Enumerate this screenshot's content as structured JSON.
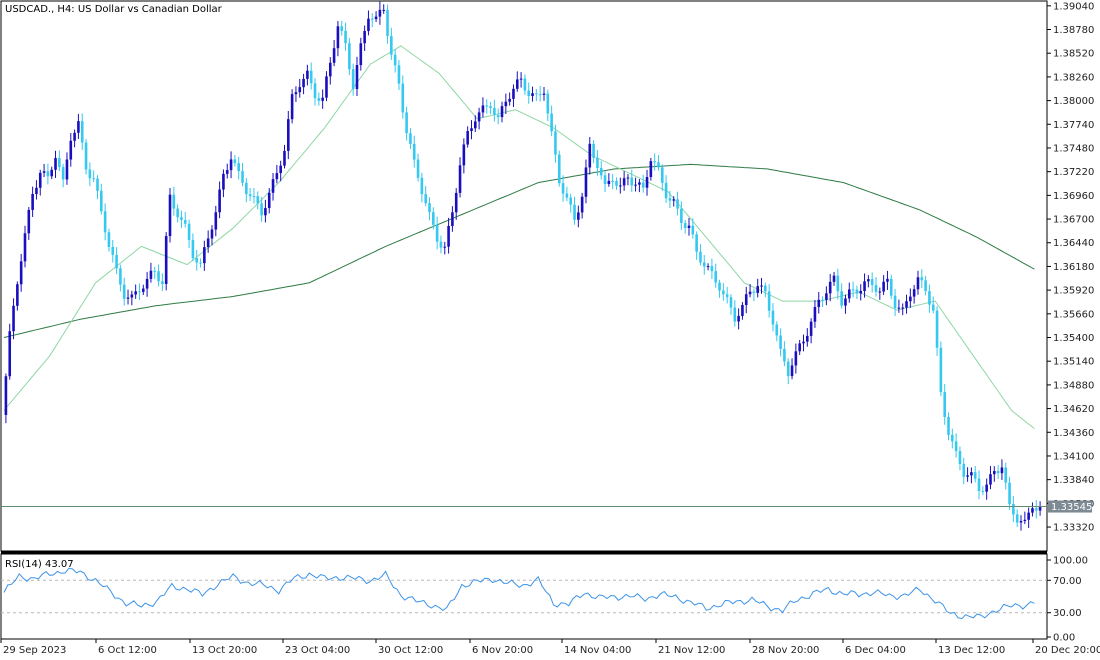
{
  "window": {
    "symbol": "USDCAD.",
    "timeframe": "H4",
    "description": "US Dollar vs Canadian Dollar",
    "title": "USDCAD., H4:  US Dollar vs Canadian Dollar"
  },
  "colors": {
    "bull": "#1a0fbf",
    "bear": "#35c8f0",
    "ma_fast": "#8fd6a4",
    "ma_slow": "#2f7a44",
    "rsi_line": "#3d94e8",
    "price_line": "#5f8f70",
    "price_tag_bg": "#7d8a93",
    "grid_frame": "#000000"
  },
  "chart_data": [
    {
      "type": "candlestick",
      "title": "USDCAD., H4:  US Dollar vs Canadian Dollar",
      "y_ticks": [
        "1.39040",
        "1.38780",
        "1.38520",
        "1.38260",
        "1.38000",
        "1.37740",
        "1.37480",
        "1.37220",
        "1.36960",
        "1.36700",
        "1.36440",
        "1.36180",
        "1.35920",
        "1.35660",
        "1.35400",
        "1.35140",
        "1.34880",
        "1.34620",
        "1.34360",
        "1.34100",
        "1.33840",
        "1.33580",
        "1.33320"
      ],
      "ylim": [
        1.3309,
        1.3906
      ],
      "x_ticks": [
        "29 Sep 2023",
        "6 Oct 12:00",
        "13 Oct 20:00",
        "23 Oct 04:00",
        "30 Oct 12:00",
        "6 Nov 20:00",
        "14 Nov 04:00",
        "21 Nov 12:00",
        "28 Nov 20:00",
        "6 Dec 04:00",
        "13 Dec 12:00",
        "20 Dec 20:00"
      ],
      "current_price": "1.33545",
      "close_path": [
        [
          0,
          1.3455
        ],
        [
          2,
          1.354
        ],
        [
          4,
          1.36
        ],
        [
          6,
          1.365
        ],
        [
          8,
          1.37
        ],
        [
          10,
          1.3725
        ],
        [
          12,
          1.3715
        ],
        [
          14,
          1.374
        ],
        [
          16,
          1.3705
        ],
        [
          18,
          1.376
        ],
        [
          20,
          1.3775
        ],
        [
          22,
          1.373
        ],
        [
          24,
          1.3715
        ],
        [
          26,
          1.3675
        ],
        [
          28,
          1.364
        ],
        [
          30,
          1.361
        ],
        [
          32,
          1.359
        ],
        [
          34,
          1.3585
        ],
        [
          36,
          1.3595
        ],
        [
          38,
          1.36
        ],
        [
          40,
          1.361
        ],
        [
          42,
          1.36
        ],
        [
          44,
          1.3695
        ],
        [
          46,
          1.368
        ],
        [
          48,
          1.366
        ],
        [
          50,
          1.363
        ],
        [
          52,
          1.3615
        ],
        [
          54,
          1.365
        ],
        [
          56,
          1.368
        ],
        [
          58,
          1.372
        ],
        [
          60,
          1.374
        ],
        [
          62,
          1.3715
        ],
        [
          64,
          1.37
        ],
        [
          66,
          1.369
        ],
        [
          68,
          1.368
        ],
        [
          70,
          1.37
        ],
        [
          72,
          1.372
        ],
        [
          74,
          1.3745
        ],
        [
          76,
          1.38
        ],
        [
          78,
          1.382
        ],
        [
          80,
          1.383
        ],
        [
          82,
          1.381
        ],
        [
          84,
          1.38
        ],
        [
          86,
          1.384
        ],
        [
          88,
          1.388
        ],
        [
          90,
          1.386
        ],
        [
          92,
          1.382
        ],
        [
          94,
          1.386
        ],
        [
          96,
          1.3895
        ],
        [
          98,
          1.3885
        ],
        [
          100,
          1.39
        ],
        [
          102,
          1.385
        ],
        [
          104,
          1.382
        ],
        [
          106,
          1.377
        ],
        [
          108,
          1.373
        ],
        [
          110,
          1.37
        ],
        [
          112,
          1.367
        ],
        [
          114,
          1.365
        ],
        [
          116,
          1.364
        ],
        [
          118,
          1.368
        ],
        [
          120,
          1.373
        ],
        [
          122,
          1.376
        ],
        [
          124,
          1.378
        ],
        [
          126,
          1.379
        ],
        [
          128,
          1.38
        ],
        [
          130,
          1.378
        ],
        [
          132,
          1.38
        ],
        [
          134,
          1.381
        ],
        [
          136,
          1.382
        ],
        [
          138,
          1.381
        ],
        [
          140,
          1.3805
        ],
        [
          142,
          1.3815
        ],
        [
          144,
          1.376
        ],
        [
          146,
          1.371
        ],
        [
          148,
          1.369
        ],
        [
          150,
          1.367
        ],
        [
          152,
          1.37
        ],
        [
          154,
          1.375
        ],
        [
          156,
          1.373
        ],
        [
          158,
          1.37
        ],
        [
          160,
          1.3715
        ],
        [
          162,
          1.3705
        ],
        [
          164,
          1.372
        ],
        [
          166,
          1.371
        ],
        [
          168,
          1.37
        ],
        [
          170,
          1.3735
        ],
        [
          172,
          1.372
        ],
        [
          174,
          1.37
        ],
        [
          176,
          1.369
        ],
        [
          178,
          1.367
        ],
        [
          180,
          1.366
        ],
        [
          182,
          1.363
        ],
        [
          184,
          1.362
        ],
        [
          186,
          1.361
        ],
        [
          188,
          1.36
        ],
        [
          190,
          1.358
        ],
        [
          192,
          1.356
        ],
        [
          194,
          1.357
        ],
        [
          196,
          1.359
        ],
        [
          198,
          1.36
        ],
        [
          200,
          1.359
        ],
        [
          202,
          1.356
        ],
        [
          204,
          1.352
        ],
        [
          206,
          1.35
        ],
        [
          208,
          1.352
        ],
        [
          210,
          1.354
        ],
        [
          212,
          1.356
        ],
        [
          214,
          1.358
        ],
        [
          216,
          1.359
        ],
        [
          218,
          1.36
        ],
        [
          220,
          1.358
        ],
        [
          222,
          1.359
        ],
        [
          224,
          1.3595
        ],
        [
          226,
          1.36
        ],
        [
          228,
          1.3595
        ],
        [
          230,
          1.359
        ],
        [
          232,
          1.36
        ],
        [
          234,
          1.358
        ],
        [
          236,
          1.357
        ],
        [
          238,
          1.359
        ],
        [
          240,
          1.36
        ],
        [
          242,
          1.359
        ],
        [
          244,
          1.357
        ],
        [
          246,
          1.348
        ],
        [
          248,
          1.344
        ],
        [
          250,
          1.341
        ],
        [
          252,
          1.339
        ],
        [
          254,
          1.3385
        ],
        [
          256,
          1.3375
        ],
        [
          258,
          1.338
        ],
        [
          260,
          1.3395
        ],
        [
          262,
          1.34
        ],
        [
          264,
          1.335
        ],
        [
          266,
          1.334
        ],
        [
          268,
          1.3335
        ],
        [
          270,
          1.336
        ],
        [
          272,
          1.3354
        ]
      ],
      "ma_fast": [
        [
          0,
          1.346
        ],
        [
          12,
          1.352
        ],
        [
          24,
          1.36
        ],
        [
          36,
          1.364
        ],
        [
          48,
          1.362
        ],
        [
          60,
          1.366
        ],
        [
          72,
          1.371
        ],
        [
          84,
          1.377
        ],
        [
          96,
          1.384
        ],
        [
          104,
          1.386
        ],
        [
          114,
          1.383
        ],
        [
          124,
          1.378
        ],
        [
          134,
          1.379
        ],
        [
          144,
          1.377
        ],
        [
          154,
          1.374
        ],
        [
          164,
          1.372
        ],
        [
          174,
          1.37
        ],
        [
          184,
          1.365
        ],
        [
          194,
          1.36
        ],
        [
          204,
          1.358
        ],
        [
          214,
          1.358
        ],
        [
          224,
          1.359
        ],
        [
          234,
          1.357
        ],
        [
          244,
          1.358
        ],
        [
          254,
          1.352
        ],
        [
          264,
          1.346
        ],
        [
          270,
          1.344
        ]
      ],
      "ma_slow": [
        [
          0,
          1.354
        ],
        [
          20,
          1.356
        ],
        [
          40,
          1.3575
        ],
        [
          60,
          1.3585
        ],
        [
          80,
          1.36
        ],
        [
          100,
          1.364
        ],
        [
          120,
          1.3675
        ],
        [
          140,
          1.371
        ],
        [
          160,
          1.3725
        ],
        [
          180,
          1.373
        ],
        [
          200,
          1.3725
        ],
        [
          220,
          1.371
        ],
        [
          240,
          1.368
        ],
        [
          255,
          1.365
        ],
        [
          270,
          1.3615
        ]
      ]
    },
    {
      "type": "line",
      "title": "RSI(14) 43.07",
      "series": [
        {
          "name": "RSI(14) 43.07",
          "values": [
            [
              0,
              55
            ],
            [
              4,
              75
            ],
            [
              8,
              72
            ],
            [
              12,
              78
            ],
            [
              16,
              82
            ],
            [
              20,
              80
            ],
            [
              24,
              70
            ],
            [
              28,
              55
            ],
            [
              32,
              42
            ],
            [
              36,
              38
            ],
            [
              40,
              44
            ],
            [
              44,
              62
            ],
            [
              48,
              60
            ],
            [
              52,
              52
            ],
            [
              56,
              66
            ],
            [
              60,
              74
            ],
            [
              64,
              67
            ],
            [
              68,
              64
            ],
            [
              72,
              58
            ],
            [
              76,
              72
            ],
            [
              80,
              78
            ],
            [
              84,
              72
            ],
            [
              88,
              74
            ],
            [
              92,
              72
            ],
            [
              96,
              70
            ],
            [
              100,
              76
            ],
            [
              104,
              52
            ],
            [
              108,
              44
            ],
            [
              112,
              40
            ],
            [
              116,
              33
            ],
            [
              120,
              64
            ],
            [
              124,
              68
            ],
            [
              128,
              72
            ],
            [
              132,
              66
            ],
            [
              136,
              64
            ],
            [
              140,
              70
            ],
            [
              144,
              42
            ],
            [
              148,
              40
            ],
            [
              152,
              55
            ],
            [
              156,
              48
            ],
            [
              160,
              50
            ],
            [
              164,
              50
            ],
            [
              168,
              48
            ],
            [
              172,
              52
            ],
            [
              176,
              50
            ],
            [
              180,
              42
            ],
            [
              184,
              36
            ],
            [
              188,
              40
            ],
            [
              192,
              44
            ],
            [
              196,
              46
            ],
            [
              200,
              38
            ],
            [
              204,
              33
            ],
            [
              208,
              46
            ],
            [
              212,
              54
            ],
            [
              216,
              58
            ],
            [
              220,
              54
            ],
            [
              224,
              52
            ],
            [
              228,
              56
            ],
            [
              232,
              50
            ],
            [
              236,
              52
            ],
            [
              240,
              58
            ],
            [
              244,
              46
            ],
            [
              248,
              28
            ],
            [
              252,
              26
            ],
            [
              256,
              24
            ],
            [
              260,
              34
            ],
            [
              264,
              38
            ],
            [
              268,
              40
            ],
            [
              270,
              43
            ]
          ]
        }
      ],
      "y_ticks": [
        "100.00",
        "70.00",
        "30.00",
        "0.00"
      ],
      "levels": [
        70,
        30
      ],
      "ylim": [
        0,
        100
      ],
      "current_value": 43.07
    }
  ]
}
